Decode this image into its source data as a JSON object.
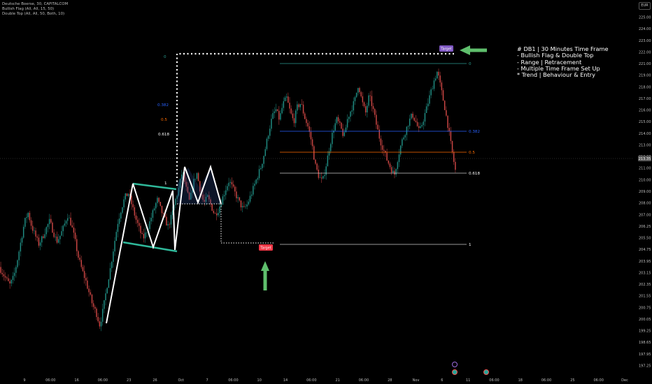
{
  "legend": {
    "symbol": "Deutsche Boerse, 30, CAPITALCOM",
    "indicator_1": "Bullish Flag (All, All, 15, 50)",
    "indicator_2": "Double Top (All, All, 50, Both, 10)"
  },
  "currency_label": "EUR",
  "notes": [
    "# DB1 | 30 Minutes Time Frame",
    "- Bullish Flag & Double Top",
    "- Range | Retracement",
    "- Multiple Time Frame Set Up",
    "* Trend | Behaviour & Entry"
  ],
  "targets": {
    "top_label": "Target",
    "bottom_label": "Target"
  },
  "colors": {
    "up": "#26a69a",
    "down": "#ef5350",
    "candle_muted": "#9a9a9a",
    "flag": "#2fb89a",
    "pattern": "#ffffff",
    "target_arrow": "#5fbf6d",
    "target_top_bg": "#7e57c2",
    "target_bottom_bg": "#f23645",
    "fib_0": "#2a9d8f",
    "fib_0382": "#2962ff",
    "fib_05": "#ff6d00",
    "fib_0618": "#cccccc",
    "fib_1": "#cccccc",
    "price_badge": "#555555"
  },
  "chart_data": {
    "type": "candlestick",
    "y_ticks": [
      "225.00",
      "224.00",
      "223.00",
      "222.00",
      "221.00",
      "219.00",
      "218.00",
      "217.00",
      "216.00",
      "215.00",
      "214.00",
      "213.00",
      "212.00",
      "211.00",
      "210.00",
      "209.00",
      "208.00",
      "207.00",
      "206.25",
      "205.50",
      "204.75",
      "203.95",
      "203.15",
      "202.35",
      "201.55",
      "200.75",
      "200.05",
      "199.25",
      "198.65",
      "197.95",
      "197.25"
    ],
    "x_ticks": [
      "9",
      "06:00",
      "16",
      "06:00",
      "23",
      "26",
      "Oct",
      "7",
      "06:00",
      "10",
      "14",
      "06:00",
      "21",
      "06:00",
      "28",
      "Nov",
      "6",
      "11",
      "06:00",
      "18",
      "06:00",
      "25",
      "06:00",
      "Dec"
    ],
    "last_price": "213.35",
    "ylim": [
      196.9,
      225.5
    ],
    "left_fib": {
      "levels": [
        {
          "label": "0",
          "price": 222.0
        },
        {
          "label": "0.382",
          "price": 217.5
        },
        {
          "label": "0.5",
          "price": 216.6
        },
        {
          "label": "0.618",
          "price": 215.1
        },
        {
          "label": "1",
          "price": 211.4
        }
      ]
    },
    "right_fib": {
      "levels": [
        {
          "label": "0",
          "price": 220.9
        },
        {
          "label": "0.382",
          "price": 215.6
        },
        {
          "label": "0.5",
          "price": 213.8
        },
        {
          "label": "0.618",
          "price": 212.2
        },
        {
          "label": "1",
          "price": 206.6
        }
      ]
    },
    "price_path": [
      205.0,
      204.5,
      204.0,
      203.6,
      204.2,
      205.5,
      207.0,
      208.5,
      209.3,
      208.2,
      207.5,
      206.8,
      207.3,
      208.0,
      208.6,
      207.8,
      207.0,
      207.5,
      208.2,
      209.1,
      208.4,
      207.2,
      205.8,
      204.8,
      204.0,
      203.0,
      202.0,
      201.4,
      200.4,
      201.8,
      203.5,
      205.0,
      206.8,
      208.5,
      209.6,
      210.5,
      210.8,
      209.8,
      208.8,
      208.0,
      207.2,
      207.8,
      208.6,
      209.5,
      210.3,
      209.5,
      208.8,
      208.2,
      209.0,
      210.2,
      211.2,
      212.6,
      211.2,
      210.1,
      211.6,
      212.4,
      211.0,
      210.0,
      210.5,
      209.8,
      209.1,
      209.5,
      210.3,
      211.1,
      211.8,
      211.2,
      210.6,
      210.0,
      209.5,
      209.9,
      210.6,
      211.4,
      212.2,
      213.0,
      214.2,
      215.6,
      216.8,
      217.4,
      216.6,
      217.8,
      218.3,
      217.2,
      216.4,
      217.6,
      217.9,
      216.8,
      216.0,
      214.8,
      213.0,
      212.1,
      211.7,
      213.0,
      214.5,
      215.8,
      216.6,
      216.0,
      215.2,
      216.7,
      217.4,
      218.1,
      219.4,
      218.0,
      217.1,
      218.5,
      217.5,
      216.2,
      215.0,
      214.2,
      213.4,
      212.8,
      212.2,
      213.6,
      214.8,
      215.6,
      216.4,
      217.0,
      216.4,
      215.6,
      216.5,
      217.5,
      218.6,
      219.6,
      220.4,
      219.0,
      217.6,
      216.0,
      214.2,
      212.6
    ]
  }
}
